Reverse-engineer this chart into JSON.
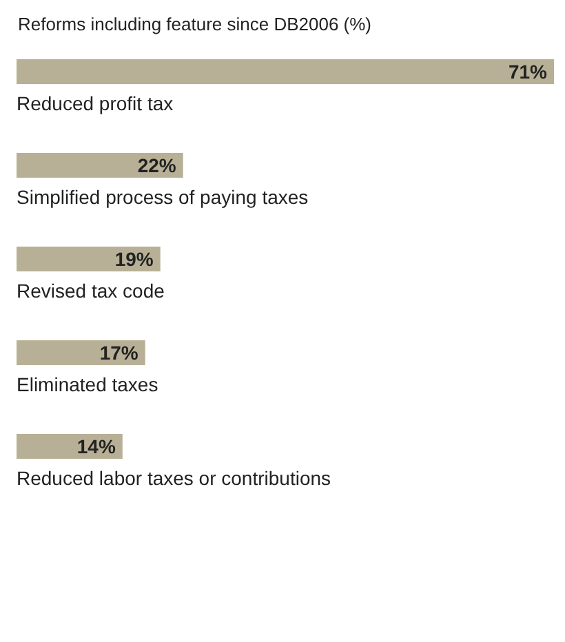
{
  "chart_data": {
    "type": "bar",
    "orientation": "horizontal",
    "title": "Reforms including feature since DB2006 (%)",
    "categories": [
      "Reduced profit tax",
      "Simplified process of paying taxes",
      "Revised tax code",
      "Eliminated taxes",
      "Reduced labor taxes or contributions"
    ],
    "values": [
      71,
      22,
      19,
      17,
      14
    ],
    "value_labels": [
      "71%",
      "22%",
      "19%",
      "17%",
      "14%"
    ],
    "color": "#b8b096"
  }
}
